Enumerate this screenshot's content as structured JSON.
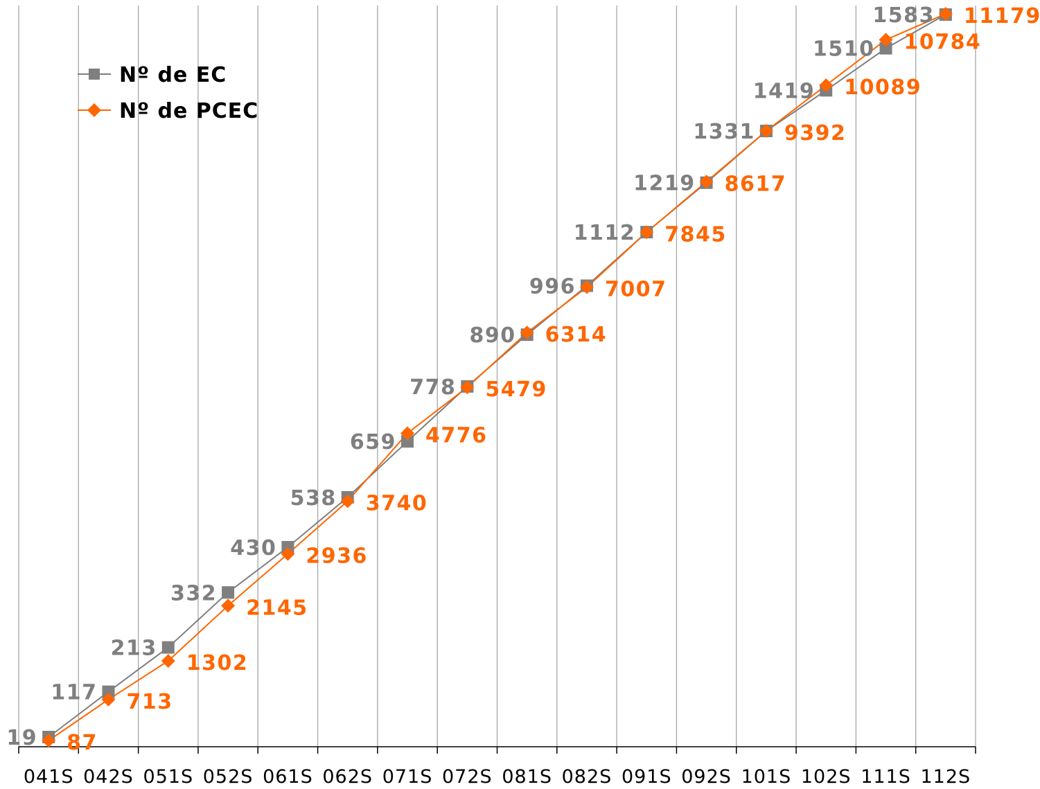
{
  "chart_data": {
    "type": "line",
    "categories": [
      "041S",
      "042S",
      "051S",
      "052S",
      "061S",
      "062S",
      "071S",
      "072S",
      "081S",
      "082S",
      "091S",
      "092S",
      "101S",
      "102S",
      "111S",
      "112S"
    ],
    "series": [
      {
        "name": "Nº de EC",
        "color": "#7f7f7f",
        "marker": "square",
        "values": [
          19,
          117,
          213,
          332,
          430,
          538,
          659,
          778,
          890,
          996,
          1112,
          1219,
          1331,
          1419,
          1510,
          1583
        ],
        "labels": [
          "19",
          "117",
          "213",
          "332",
          "430",
          "538",
          "659",
          "778",
          "890",
          "996",
          "1112",
          "1219",
          "1331",
          "1419",
          "1510",
          "1583"
        ]
      },
      {
        "name": "Nº de PCEC",
        "color": "#ff6600",
        "marker": "diamond",
        "values": [
          87,
          713,
          1302,
          2145,
          2936,
          3740,
          4776,
          5479,
          6314,
          7007,
          7845,
          8617,
          9392,
          10089,
          10784,
          11179
        ],
        "labels": [
          "87",
          "713",
          "1302",
          "2145",
          "2936",
          "3740",
          "4776",
          "5479",
          "6314",
          "7007",
          "7845",
          "8617",
          "9392",
          "10089",
          "10784",
          "11179"
        ]
      }
    ],
    "legend_position": "top-left",
    "vertical_grid": true,
    "horizontal_grid": false
  }
}
